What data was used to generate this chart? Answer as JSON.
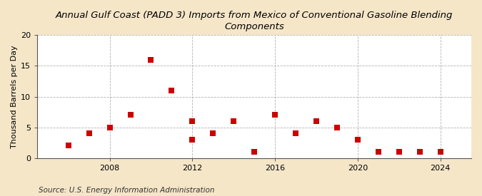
{
  "title": "Annual Gulf Coast (PADD 3) Imports from Mexico of Conventional Gasoline Blending\nComponents",
  "ylabel": "Thousand Barrels per Day",
  "source": "Source: U.S. Energy Information Administration",
  "data_points": [
    [
      2006,
      2
    ],
    [
      2007,
      4
    ],
    [
      2008,
      5
    ],
    [
      2009,
      7
    ],
    [
      2010,
      16
    ],
    [
      2011,
      11
    ],
    [
      2012,
      6
    ],
    [
      2012,
      3
    ],
    [
      2013,
      4
    ],
    [
      2014,
      6
    ],
    [
      2015,
      1
    ],
    [
      2016,
      7
    ],
    [
      2017,
      4
    ],
    [
      2018,
      6
    ],
    [
      2019,
      5
    ],
    [
      2020,
      3
    ],
    [
      2021,
      1
    ],
    [
      2022,
      1
    ],
    [
      2023,
      1
    ],
    [
      2024,
      1
    ]
  ],
  "marker_color": "#cc0000",
  "marker_size": 28,
  "background_color": "#f5e6c8",
  "plot_background": "#ffffff",
  "grid_color": "#aaaaaa",
  "xlim": [
    2004.5,
    2025.5
  ],
  "ylim": [
    0,
    20
  ],
  "yticks": [
    0,
    5,
    10,
    15,
    20
  ],
  "xticks": [
    2008,
    2012,
    2016,
    2020,
    2024
  ],
  "title_fontsize": 9.5,
  "ylabel_fontsize": 8,
  "tick_fontsize": 8,
  "source_fontsize": 7.5
}
